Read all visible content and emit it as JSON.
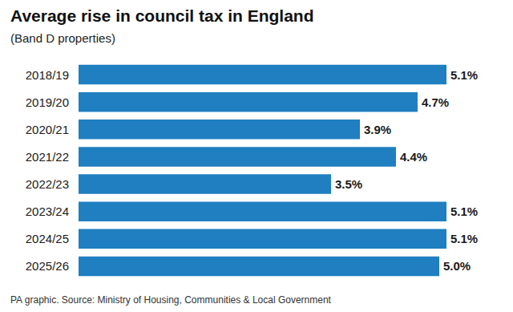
{
  "chart_data": {
    "type": "bar",
    "orientation": "horizontal",
    "title": "Average rise in council tax in England",
    "subtitle": "(Band D properties)",
    "source": "PA graphic. Source: Ministry of Housing, Communities & Local Government",
    "categories": [
      "2018/19",
      "2019/20",
      "2020/21",
      "2021/22",
      "2022/23",
      "2023/24",
      "2024/25",
      "2025/26"
    ],
    "values": [
      5.1,
      4.7,
      3.9,
      4.4,
      3.5,
      5.1,
      5.1,
      5.0
    ],
    "value_labels": [
      "5.1%",
      "4.7%",
      "3.9%",
      "4.4%",
      "3.5%",
      "5.1%",
      "5.1%",
      "5.0%"
    ],
    "color": "#1f7fc1",
    "xlim": [
      0,
      5.1
    ],
    "grid": false,
    "data_labels": true,
    "tick_labels": "y"
  }
}
